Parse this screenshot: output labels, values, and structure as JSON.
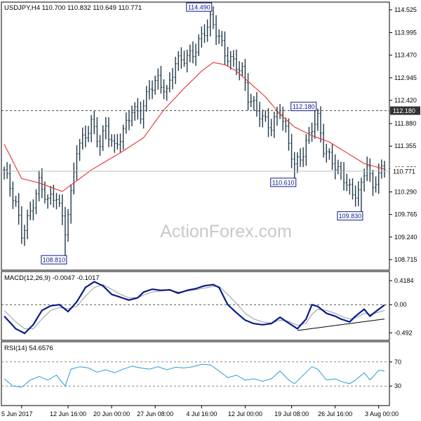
{
  "header": {
    "symbol_line": "USDJPY,H4  110.700 110.832 110.649 110.771",
    "macd_label": "MACD(12,26,9) -0.0047 -0.1017",
    "rsi_label": "RSI(14) 54.6576"
  },
  "watermark": "ActionForex.com",
  "colors": {
    "background": "#ffffff",
    "price_bars": "#1f3a4a",
    "moving_average": "#e83030",
    "macd_main": "#0a1a8a",
    "macd_signal": "#9a9a9a",
    "rsi_line": "#2a9ad8",
    "annotation_box": "#0a1a8a",
    "grid": "#000000",
    "watermark": "#c8c8c8"
  },
  "chart_data": [
    {
      "panel": "price",
      "type": "ohlc",
      "y_axis_ticks": [
        "114.525",
        "113.995",
        "113.470",
        "112.945",
        "112.420",
        "111.880",
        "111.355",
        "110.830",
        "110.290",
        "109.765",
        "109.240",
        "108.715"
      ],
      "ylim": [
        108.715,
        114.525
      ],
      "current_price_label": "110.771",
      "current_price": 110.771,
      "horizontal_line_label": "112.180",
      "horizontal_line": 112.18,
      "annotations": [
        {
          "label": "114.490",
          "value": 114.49,
          "bar": 71
        },
        {
          "label": "108.810",
          "value": 108.81,
          "bar": 21
        },
        {
          "label": "112.180",
          "value": 112.18,
          "bar": 107
        },
        {
          "label": "110.610",
          "value": 110.61,
          "bar": 100
        },
        {
          "label": "109.830",
          "value": 109.83,
          "bar": 123
        }
      ],
      "close_path": [
        [
          0,
          110.8
        ],
        [
          4,
          110.0
        ],
        [
          6,
          109.3
        ],
        [
          9,
          109.8
        ],
        [
          12,
          110.5
        ],
        [
          15,
          110.1
        ],
        [
          18,
          110.2
        ],
        [
          21,
          109.4
        ],
        [
          23,
          110.2
        ],
        [
          25,
          111.3
        ],
        [
          28,
          111.6
        ],
        [
          30,
          111.9
        ],
        [
          33,
          111.4
        ],
        [
          35,
          111.8
        ],
        [
          38,
          111.3
        ],
        [
          41,
          111.7
        ],
        [
          44,
          112.2
        ],
        [
          47,
          112.1
        ],
        [
          50,
          112.7
        ],
        [
          53,
          112.9
        ],
        [
          56,
          112.6
        ],
        [
          59,
          113.3
        ],
        [
          62,
          113.4
        ],
        [
          65,
          113.5
        ],
        [
          68,
          113.9
        ],
        [
          71,
          114.3
        ],
        [
          74,
          113.9
        ],
        [
          76,
          113.5
        ],
        [
          79,
          113.3
        ],
        [
          82,
          113.1
        ],
        [
          84,
          112.5
        ],
        [
          87,
          112.2
        ],
        [
          89,
          112.0
        ],
        [
          92,
          111.8
        ],
        [
          95,
          112.2
        ],
        [
          97,
          111.7
        ],
        [
          100,
          110.9
        ],
        [
          103,
          111.2
        ],
        [
          106,
          111.8
        ],
        [
          108,
          112.0
        ],
        [
          110,
          111.3
        ],
        [
          112,
          111.1
        ],
        [
          115,
          110.8
        ],
        [
          118,
          110.5
        ],
        [
          120,
          110.2
        ],
        [
          123,
          110.4
        ],
        [
          125,
          111.0
        ],
        [
          127,
          110.3
        ],
        [
          129,
          110.8
        ],
        [
          131,
          110.77
        ]
      ],
      "moving_average_points": [
        [
          0,
          111.4
        ],
        [
          6,
          110.6
        ],
        [
          12,
          110.5
        ],
        [
          20,
          110.3
        ],
        [
          30,
          110.8
        ],
        [
          40,
          111.2
        ],
        [
          48,
          111.55
        ],
        [
          55,
          112.2
        ],
        [
          62,
          112.7
        ],
        [
          68,
          113.1
        ],
        [
          72,
          113.3
        ],
        [
          76,
          113.25
        ],
        [
          80,
          113.1
        ],
        [
          85,
          112.8
        ],
        [
          90,
          112.5
        ],
        [
          95,
          112.1
        ],
        [
          100,
          111.8
        ],
        [
          106,
          111.6
        ],
        [
          112,
          111.45
        ],
        [
          118,
          111.2
        ],
        [
          124,
          110.95
        ],
        [
          131,
          110.82
        ]
      ]
    },
    {
      "panel": "macd",
      "type": "line",
      "label": "MACD(12,26,9) -0.0047 -0.1017",
      "y_axis_ticks": [
        "0.4184",
        "0.00",
        "-0.492"
      ],
      "ylim": [
        -0.56,
        0.48
      ],
      "series": [
        {
          "values_path": [
            [
              0,
              -0.2
            ],
            [
              4,
              -0.42
            ],
            [
              7,
              -0.5
            ],
            [
              10,
              -0.35
            ],
            [
              13,
              -0.1
            ],
            [
              16,
              -0.02
            ],
            [
              19,
              0.0
            ],
            [
              22,
              -0.12
            ],
            [
              25,
              0.05
            ],
            [
              28,
              0.3
            ],
            [
              31,
              0.4
            ],
            [
              34,
              0.33
            ],
            [
              37,
              0.18
            ],
            [
              40,
              0.13
            ],
            [
              43,
              0.08
            ],
            [
              46,
              0.12
            ],
            [
              48,
              0.22
            ],
            [
              51,
              0.27
            ],
            [
              54,
              0.25
            ],
            [
              57,
              0.26
            ],
            [
              60,
              0.2
            ],
            [
              63,
              0.25
            ],
            [
              66,
              0.28
            ],
            [
              69,
              0.33
            ],
            [
              72,
              0.35
            ],
            [
              74,
              0.3
            ],
            [
              77,
              0.0
            ],
            [
              80,
              -0.14
            ],
            [
              83,
              -0.27
            ],
            [
              86,
              -0.33
            ],
            [
              89,
              -0.35
            ],
            [
              92,
              -0.33
            ],
            [
              95,
              -0.22
            ],
            [
              98,
              -0.32
            ],
            [
              101,
              -0.42
            ],
            [
              104,
              -0.25
            ],
            [
              106,
              0.0
            ],
            [
              108,
              -0.03
            ],
            [
              111,
              -0.15
            ],
            [
              114,
              -0.2
            ],
            [
              116,
              -0.25
            ],
            [
              119,
              -0.3
            ],
            [
              121,
              -0.2
            ],
            [
              124,
              -0.08
            ],
            [
              126,
              -0.2
            ],
            [
              129,
              -0.08
            ],
            [
              131,
              -0.005
            ]
          ]
        },
        {
          "values_path": [
            [
              0,
              -0.1
            ],
            [
              4,
              -0.3
            ],
            [
              7,
              -0.42
            ],
            [
              10,
              -0.42
            ],
            [
              13,
              -0.25
            ],
            [
              16,
              -0.1
            ],
            [
              19,
              -0.05
            ],
            [
              22,
              -0.07
            ],
            [
              25,
              -0.03
            ],
            [
              28,
              0.15
            ],
            [
              31,
              0.3
            ],
            [
              34,
              0.35
            ],
            [
              37,
              0.27
            ],
            [
              40,
              0.18
            ],
            [
              43,
              0.12
            ],
            [
              46,
              0.12
            ],
            [
              48,
              0.17
            ],
            [
              51,
              0.22
            ],
            [
              54,
              0.24
            ],
            [
              57,
              0.25
            ],
            [
              60,
              0.22
            ],
            [
              63,
              0.24
            ],
            [
              66,
              0.26
            ],
            [
              69,
              0.29
            ],
            [
              72,
              0.32
            ],
            [
              74,
              0.32
            ],
            [
              77,
              0.18
            ],
            [
              80,
              0.02
            ],
            [
              83,
              -0.15
            ],
            [
              86,
              -0.25
            ],
            [
              89,
              -0.3
            ],
            [
              92,
              -0.32
            ],
            [
              95,
              -0.27
            ],
            [
              98,
              -0.29
            ],
            [
              101,
              -0.36
            ],
            [
              104,
              -0.32
            ],
            [
              106,
              -0.17
            ],
            [
              108,
              -0.08
            ],
            [
              111,
              -0.1
            ],
            [
              114,
              -0.15
            ],
            [
              116,
              -0.2
            ],
            [
              119,
              -0.25
            ],
            [
              121,
              -0.23
            ],
            [
              124,
              -0.15
            ],
            [
              126,
              -0.17
            ],
            [
              129,
              -0.13
            ],
            [
              131,
              -0.1
            ]
          ]
        }
      ],
      "trendline": [
        [
          101,
          -0.45
        ],
        [
          131,
          -0.25
        ]
      ]
    },
    {
      "panel": "rsi",
      "type": "line",
      "label": "RSI(14) 54.6576",
      "y_axis_ticks": [
        "70",
        "30"
      ],
      "ylim": [
        0,
        100
      ],
      "values_path": [
        [
          0,
          42
        ],
        [
          3,
          30
        ],
        [
          6,
          28
        ],
        [
          9,
          40
        ],
        [
          12,
          46
        ],
        [
          15,
          40
        ],
        [
          18,
          48
        ],
        [
          21,
          30
        ],
        [
          23,
          58
        ],
        [
          26,
          62
        ],
        [
          29,
          60
        ],
        [
          32,
          53
        ],
        [
          35,
          57
        ],
        [
          38,
          52
        ],
        [
          41,
          58
        ],
        [
          44,
          63
        ],
        [
          47,
          60
        ],
        [
          50,
          58
        ],
        [
          53,
          62
        ],
        [
          56,
          57
        ],
        [
          59,
          61
        ],
        [
          62,
          60
        ],
        [
          65,
          62
        ],
        [
          68,
          66
        ],
        [
          71,
          65
        ],
        [
          74,
          55
        ],
        [
          77,
          44
        ],
        [
          80,
          48
        ],
        [
          83,
          40
        ],
        [
          86,
          42
        ],
        [
          89,
          38
        ],
        [
          92,
          42
        ],
        [
          95,
          55
        ],
        [
          98,
          40
        ],
        [
          100,
          34
        ],
        [
          103,
          48
        ],
        [
          106,
          62
        ],
        [
          108,
          58
        ],
        [
          111,
          40
        ],
        [
          114,
          42
        ],
        [
          117,
          36
        ],
        [
          119,
          34
        ],
        [
          121,
          40
        ],
        [
          124,
          52
        ],
        [
          126,
          40
        ],
        [
          129,
          56
        ],
        [
          131,
          54.66
        ]
      ]
    }
  ],
  "x_axis": {
    "bar_count": 132,
    "labels": [
      {
        "text": "5 Jun 2017",
        "bar": 6
      },
      {
        "text": "12 Jun 16:00",
        "bar": 22
      },
      {
        "text": "20 Jun 00:00",
        "bar": 37
      },
      {
        "text": "27 Jun 08:00",
        "bar": 52
      },
      {
        "text": "4 Jul 16:00",
        "bar": 68
      },
      {
        "text": "12 Jul 00:00",
        "bar": 83
      },
      {
        "text": "19 Jul 08:00",
        "bar": 99
      },
      {
        "text": "26 Jul 16:00",
        "bar": 114
      },
      {
        "text": "3 Aug 00:00",
        "bar": 129
      }
    ]
  }
}
